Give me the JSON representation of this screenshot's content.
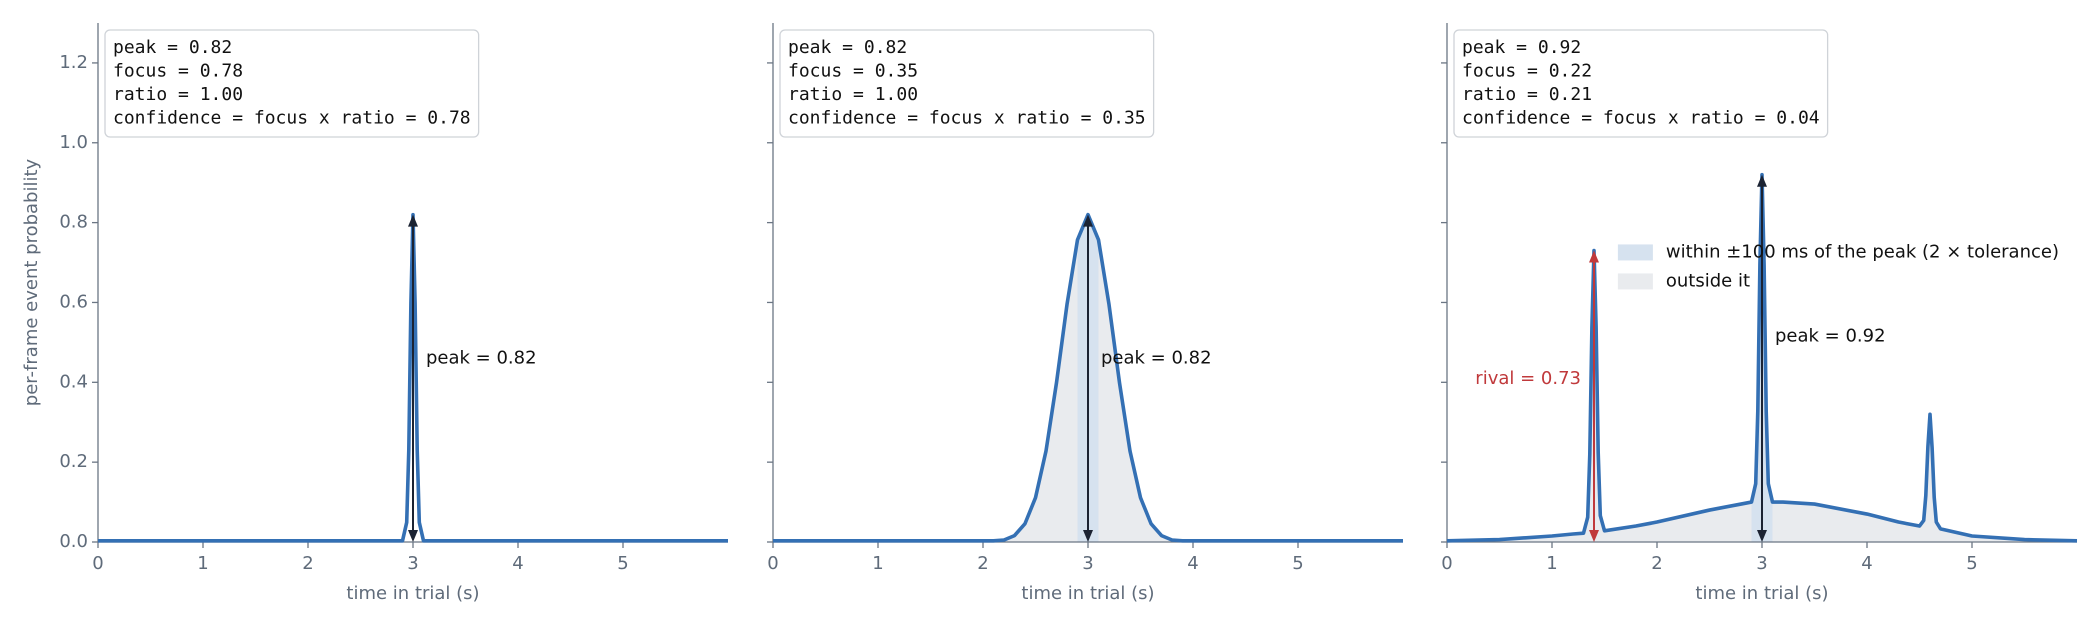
{
  "chart_data": [
    {
      "type": "line",
      "info_box": [
        "peak  = 0.82",
        "focus = 0.78",
        "ratio = 1.00",
        "confidence = focus x ratio = 0.78"
      ],
      "xlabel": "time in trial (s)",
      "ylabel": "per-frame event probability",
      "xlim": [
        0,
        6
      ],
      "ylim": [
        0,
        1.3
      ],
      "xticks": [
        0,
        1,
        2,
        3,
        4,
        5
      ],
      "yticks": [
        {
          "value": 0,
          "label": "0.0"
        },
        0.2,
        0.4,
        0.6,
        0.8,
        {
          "value": 1,
          "label": "1.0"
        },
        1.2
      ],
      "show_ytick_labels": true,
      "line_color": "#3470b4",
      "x": [
        0,
        0.5,
        1,
        1.5,
        2,
        2.5,
        2.8,
        2.9,
        2.94,
        2.96,
        2.98,
        3,
        3.02,
        3.04,
        3.06,
        3.1,
        3.2,
        3.5,
        4,
        4.5,
        5,
        5.5,
        6
      ],
      "values": [
        0.003,
        0.003,
        0.003,
        0.003,
        0.003,
        0.003,
        0.003,
        0.003,
        0.049,
        0.231,
        0.598,
        0.82,
        0.598,
        0.231,
        0.049,
        0.003,
        0.003,
        0.003,
        0.003,
        0.003,
        0.003,
        0.003,
        0.003
      ],
      "annotations": [
        {
          "x": 3,
          "value": 0.82,
          "label": "peak = 0.82",
          "color": "#1b2333",
          "text_color": "#111111",
          "side": "right"
        }
      ]
    },
    {
      "type": "line",
      "info_box": [
        "peak  = 0.82",
        "focus = 0.35",
        "ratio = 1.00",
        "confidence = focus x ratio = 0.35"
      ],
      "xlabel": "time in trial (s)",
      "xlim": [
        0,
        6
      ],
      "ylim": [
        0,
        1.3
      ],
      "xticks": [
        0,
        1,
        2,
        3,
        4,
        5
      ],
      "yticks": [
        0,
        0.2,
        0.4,
        0.6,
        0.8,
        1,
        1.2
      ],
      "show_ytick_labels": false,
      "line_color": "#3470b4",
      "shade": {
        "window": [
          2.9,
          3.1
        ],
        "inside_color": "#d6e2ef",
        "outside_color": "#e9ebee"
      },
      "x": [
        0,
        0.5,
        1,
        1.5,
        1.9,
        2,
        2.1,
        2.2,
        2.3,
        2.4,
        2.5,
        2.6,
        2.7,
        2.8,
        2.9,
        3,
        3.1,
        3.2,
        3.3,
        3.4,
        3.5,
        3.6,
        3.7,
        3.8,
        3.9,
        4,
        4.1,
        4.5,
        5,
        5.5,
        6
      ],
      "values": [
        0.003,
        0.003,
        0.003,
        0.003,
        0.003,
        0.003,
        0.003,
        0.005,
        0.016,
        0.046,
        0.111,
        0.228,
        0.399,
        0.595,
        0.757,
        0.82,
        0.757,
        0.595,
        0.399,
        0.228,
        0.111,
        0.046,
        0.016,
        0.005,
        0.003,
        0.003,
        0.003,
        0.003,
        0.003,
        0.003,
        0.003
      ],
      "annotations": [
        {
          "x": 3,
          "value": 0.82,
          "label": "peak = 0.82",
          "color": "#1b2333",
          "text_color": "#111111",
          "side": "right"
        }
      ]
    },
    {
      "type": "line",
      "info_box": [
        "peak  = 0.92",
        "focus = 0.22",
        "ratio = 0.21",
        "confidence = focus x ratio = 0.04"
      ],
      "xlabel": "time in trial (s)",
      "xlim": [
        0,
        6
      ],
      "ylim": [
        0,
        1.3
      ],
      "xticks": [
        0,
        1,
        2,
        3,
        4,
        5
      ],
      "yticks": [
        0,
        0.2,
        0.4,
        0.6,
        0.8,
        1,
        1.2
      ],
      "show_ytick_labels": false,
      "line_color": "#3470b4",
      "shade": {
        "window": [
          2.9,
          3.1
        ],
        "inside_color": "#d6e2ef",
        "outside_color": "#e9ebee"
      },
      "legend_loc": "center right",
      "legend": [
        {
          "label": "within ±100 ms of the peak (2 × tolerance)",
          "color": "#d6e2ef"
        },
        {
          "label": "outside it",
          "color": "#e9ebee"
        }
      ],
      "x": [
        0,
        0.5,
        1,
        1.2,
        1.3,
        1.34,
        1.36,
        1.38,
        1.4,
        1.42,
        1.44,
        1.46,
        1.5,
        1.8,
        2,
        2.5,
        2.8,
        2.9,
        2.94,
        2.96,
        2.98,
        3,
        3.02,
        3.04,
        3.06,
        3.1,
        3.2,
        3.5,
        4,
        4.3,
        4.5,
        4.54,
        4.56,
        4.58,
        4.6,
        4.62,
        4.64,
        4.66,
        4.7,
        5,
        5.5,
        6
      ],
      "values": [
        0.003,
        0.006,
        0.015,
        0.02,
        0.022,
        0.062,
        0.22,
        0.537,
        0.73,
        0.54,
        0.224,
        0.066,
        0.028,
        0.04,
        0.05,
        0.08,
        0.095,
        0.1,
        0.146,
        0.328,
        0.695,
        0.92,
        0.695,
        0.328,
        0.146,
        0.1,
        0.1,
        0.095,
        0.07,
        0.05,
        0.04,
        0.054,
        0.116,
        0.239,
        0.32,
        0.236,
        0.112,
        0.05,
        0.033,
        0.015,
        0.006,
        0.003
      ],
      "annotations": [
        {
          "x": 3,
          "value": 0.92,
          "label": "peak = 0.92",
          "color": "#1b2333",
          "text_color": "#111111",
          "side": "right"
        },
        {
          "x": 1.4,
          "value": 0.73,
          "label": "rival = 0.73",
          "color": "#c0393b",
          "text_color": "#c0393b",
          "side": "left"
        }
      ]
    }
  ]
}
